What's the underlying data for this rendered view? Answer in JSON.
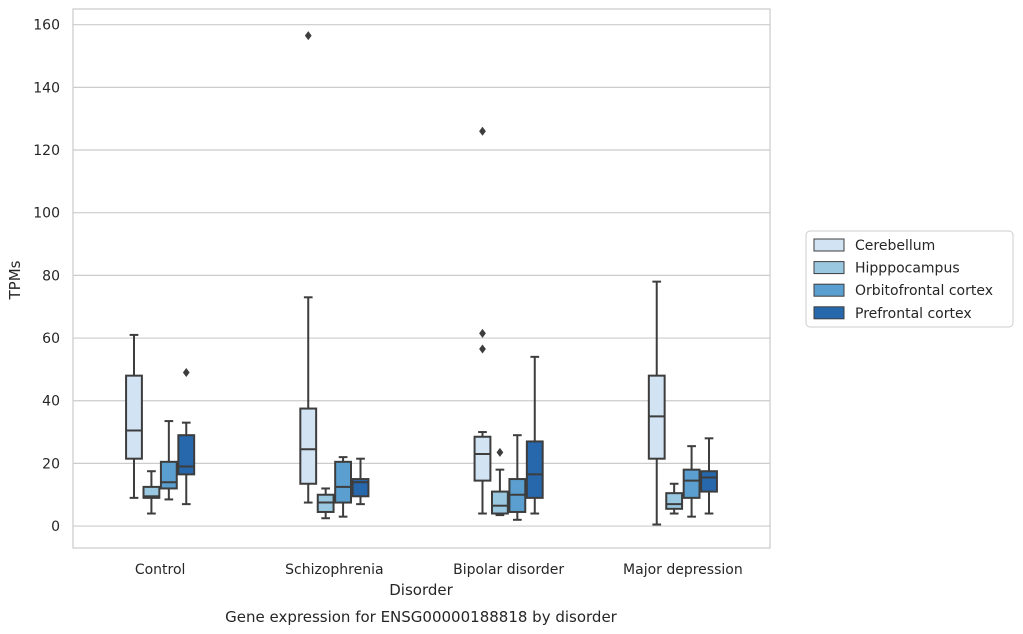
{
  "chart_data": {
    "type": "box",
    "title": "Gene expression for ENSG00000188818 by disorder",
    "xlabel": "Disorder",
    "ylabel": "TPMs",
    "ylim": [
      -7,
      165
    ],
    "yticks": [
      0,
      20,
      40,
      60,
      80,
      100,
      120,
      140,
      160
    ],
    "grid": true,
    "legend_position": "right",
    "categories": [
      "Control",
      "Schizophrenia",
      "Bipolar disorder",
      "Major depression"
    ],
    "series": [
      {
        "name": "Cerebellum",
        "color": "#d2e3f3",
        "boxes": [
          {
            "whislo": 9,
            "q1": 21.5,
            "med": 30.5,
            "q3": 48,
            "whishi": 61,
            "fliers": []
          },
          {
            "whislo": 7.5,
            "q1": 13.5,
            "med": 24.5,
            "q3": 37.5,
            "whishi": 73,
            "fliers": [
              156.5
            ]
          },
          {
            "whislo": 4,
            "q1": 14.5,
            "med": 23,
            "q3": 28.5,
            "whishi": 30,
            "fliers": [
              56.5,
              61.5,
              126
            ]
          },
          {
            "whislo": 0.5,
            "q1": 21.5,
            "med": 35,
            "q3": 48,
            "whishi": 78,
            "fliers": []
          }
        ]
      },
      {
        "name": "Hipppocampus",
        "color": "#9ac8e0",
        "boxes": [
          {
            "whislo": 4,
            "q1": 9,
            "med": 9.5,
            "q3": 12.5,
            "whishi": 17.5,
            "fliers": []
          },
          {
            "whislo": 2.5,
            "q1": 4.5,
            "med": 7.5,
            "q3": 10,
            "whishi": 12,
            "fliers": []
          },
          {
            "whislo": 3.5,
            "q1": 4,
            "med": 6.5,
            "q3": 11,
            "whishi": 18,
            "fliers": [
              23.5
            ]
          },
          {
            "whislo": 4,
            "q1": 5.5,
            "med": 7,
            "q3": 10.5,
            "whishi": 13.5,
            "fliers": []
          }
        ]
      },
      {
        "name": "Orbitofrontal cortex",
        "color": "#5a9fcf",
        "boxes": [
          {
            "whislo": 8.5,
            "q1": 12,
            "med": 14,
            "q3": 20.5,
            "whishi": 33.5,
            "fliers": []
          },
          {
            "whislo": 3,
            "q1": 7.5,
            "med": 12.5,
            "q3": 20.5,
            "whishi": 22,
            "fliers": []
          },
          {
            "whislo": 2,
            "q1": 4.5,
            "med": 10,
            "q3": 15,
            "whishi": 29,
            "fliers": []
          },
          {
            "whislo": 3,
            "q1": 9,
            "med": 14.5,
            "q3": 18,
            "whishi": 25.5,
            "fliers": []
          }
        ]
      },
      {
        "name": "Prefrontal cortex",
        "color": "#2767ac",
        "boxes": [
          {
            "whislo": 7,
            "q1": 16.5,
            "med": 19,
            "q3": 29,
            "whishi": 33,
            "fliers": [
              49
            ]
          },
          {
            "whislo": 7,
            "q1": 9.5,
            "med": 14,
            "q3": 15,
            "whishi": 21.5,
            "fliers": []
          },
          {
            "whislo": 4,
            "q1": 9,
            "med": 16.5,
            "q3": 27,
            "whishi": 54,
            "fliers": []
          },
          {
            "whislo": 4,
            "q1": 11,
            "med": 15.5,
            "q3": 17.5,
            "whishi": 28,
            "fliers": []
          }
        ]
      }
    ]
  }
}
